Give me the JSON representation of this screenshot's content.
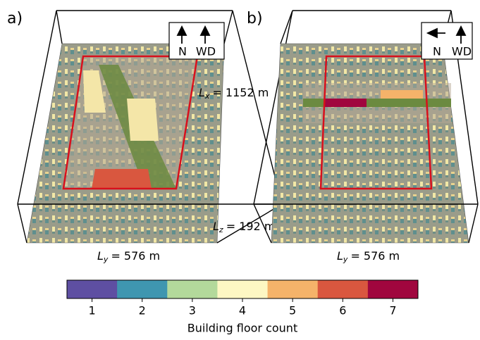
{
  "panels": [
    {
      "label": "a)",
      "compass": {
        "north": "N",
        "wind": "WD"
      },
      "lx": {
        "symbol": "L",
        "subscript": "x",
        "text": "= 1152 m"
      },
      "lz": {
        "symbol": "L",
        "subscript": "z",
        "text": "= 192 m"
      },
      "ly": {
        "symbol": "L",
        "subscript": "y",
        "text": "= 576 m"
      }
    },
    {
      "label": "b)",
      "compass": {
        "north": "N",
        "wind": "WD"
      },
      "ly": {
        "symbol": "L",
        "subscript": "y",
        "text": "= 576 m"
      }
    }
  ],
  "colorbar": {
    "label": "Building floor count",
    "ticks": [
      1,
      2,
      3,
      4,
      5,
      6,
      7
    ],
    "colors": [
      "#5e4fa2",
      "#3f96b0",
      "#b3d99b",
      "#fdf7c3",
      "#f5b36a",
      "#d9573f",
      "#a0063e"
    ]
  }
}
